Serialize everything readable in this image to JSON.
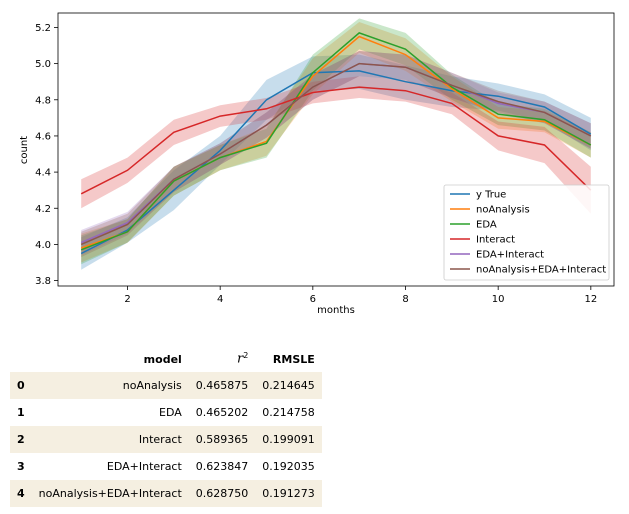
{
  "chart_data": {
    "type": "line",
    "xlabel": "months",
    "ylabel": "count",
    "xlim": [
      0.5,
      12.5
    ],
    "ylim": [
      3.77,
      5.28
    ],
    "x_ticks": [
      2,
      4,
      6,
      8,
      10,
      12
    ],
    "y_ticks": [
      3.8,
      4.0,
      4.2,
      4.4,
      4.6,
      4.8,
      5.0,
      5.2
    ],
    "legend_position": "lower-right",
    "x": [
      1,
      2,
      3,
      4,
      5,
      6,
      7,
      8,
      9,
      10,
      11,
      12
    ],
    "series": [
      {
        "name": "y True",
        "color": "#1f77b4",
        "values": [
          3.95,
          4.08,
          4.3,
          4.52,
          4.8,
          4.95,
          4.96,
          4.9,
          4.85,
          4.82,
          4.76,
          4.61
        ],
        "lower": [
          3.86,
          4.01,
          4.19,
          4.44,
          4.69,
          4.85,
          4.86,
          4.8,
          4.76,
          4.74,
          4.68,
          4.52
        ],
        "upper": [
          4.04,
          4.15,
          4.41,
          4.6,
          4.91,
          5.04,
          5.05,
          4.99,
          4.93,
          4.89,
          4.83,
          4.7
        ]
      },
      {
        "name": "noAnalysis",
        "color": "#ff7f0e",
        "values": [
          3.98,
          4.07,
          4.35,
          4.48,
          4.57,
          4.93,
          5.15,
          5.05,
          4.86,
          4.7,
          4.68,
          4.55
        ],
        "lower": [
          3.9,
          4.01,
          4.27,
          4.41,
          4.49,
          4.83,
          5.06,
          4.96,
          4.79,
          4.64,
          4.62,
          4.48
        ],
        "upper": [
          4.06,
          4.14,
          4.43,
          4.55,
          4.65,
          5.03,
          5.23,
          5.14,
          4.93,
          4.76,
          4.74,
          4.62
        ]
      },
      {
        "name": "EDA",
        "color": "#2ca02c",
        "values": [
          3.97,
          4.07,
          4.35,
          4.48,
          4.56,
          4.95,
          5.17,
          5.08,
          4.87,
          4.72,
          4.69,
          4.55
        ],
        "lower": [
          3.89,
          4.01,
          4.27,
          4.41,
          4.48,
          4.85,
          5.08,
          4.99,
          4.8,
          4.66,
          4.63,
          4.48
        ],
        "upper": [
          4.05,
          4.14,
          4.43,
          4.55,
          4.64,
          5.05,
          5.25,
          5.17,
          4.94,
          4.78,
          4.75,
          4.62
        ]
      },
      {
        "name": "Interact",
        "color": "#d62728",
        "values": [
          4.28,
          4.41,
          4.62,
          4.71,
          4.75,
          4.84,
          4.87,
          4.85,
          4.78,
          4.6,
          4.55,
          4.3
        ],
        "lower": [
          4.2,
          4.34,
          4.55,
          4.65,
          4.69,
          4.78,
          4.81,
          4.79,
          4.72,
          4.52,
          4.45,
          4.17
        ],
        "upper": [
          4.36,
          4.48,
          4.69,
          4.77,
          4.81,
          4.9,
          4.93,
          4.91,
          4.84,
          4.68,
          4.65,
          4.43
        ]
      },
      {
        "name": "EDA+Interact",
        "color": "#9467bd",
        "values": [
          4.01,
          4.12,
          4.36,
          4.5,
          4.66,
          4.87,
          5.0,
          4.98,
          4.88,
          4.78,
          4.73,
          4.6
        ],
        "lower": [
          3.94,
          4.06,
          4.29,
          4.44,
          4.59,
          4.8,
          4.93,
          4.91,
          4.81,
          4.72,
          4.67,
          4.53
        ],
        "upper": [
          4.08,
          4.18,
          4.43,
          4.56,
          4.73,
          4.94,
          5.07,
          5.05,
          4.95,
          4.84,
          4.79,
          4.67
        ]
      },
      {
        "name": "noAnalysis+EDA+Interact",
        "color": "#8c564b",
        "values": [
          4.0,
          4.11,
          4.36,
          4.5,
          4.66,
          4.87,
          5.0,
          4.98,
          4.88,
          4.79,
          4.73,
          4.6
        ],
        "lower": [
          3.93,
          4.05,
          4.29,
          4.44,
          4.59,
          4.8,
          4.93,
          4.91,
          4.81,
          4.73,
          4.67,
          4.53
        ],
        "upper": [
          4.07,
          4.17,
          4.43,
          4.56,
          4.73,
          4.94,
          5.07,
          5.05,
          4.95,
          4.85,
          4.79,
          4.67
        ]
      }
    ]
  },
  "table": {
    "headers": {
      "index": "",
      "model": "model",
      "r2": "r",
      "r2_sup": "2",
      "rmsle": "RMSLE"
    },
    "rows": [
      {
        "index": "0",
        "model": "noAnalysis",
        "r2": "0.465875",
        "rmsle": "0.214645"
      },
      {
        "index": "1",
        "model": "EDA",
        "r2": "0.465202",
        "rmsle": "0.214758"
      },
      {
        "index": "2",
        "model": "Interact",
        "r2": "0.589365",
        "rmsle": "0.199091"
      },
      {
        "index": "3",
        "model": "EDA+Interact",
        "r2": "0.623847",
        "rmsle": "0.192035"
      },
      {
        "index": "4",
        "model": "noAnalysis+EDA+Interact",
        "r2": "0.628750",
        "rmsle": "0.191273"
      }
    ]
  }
}
